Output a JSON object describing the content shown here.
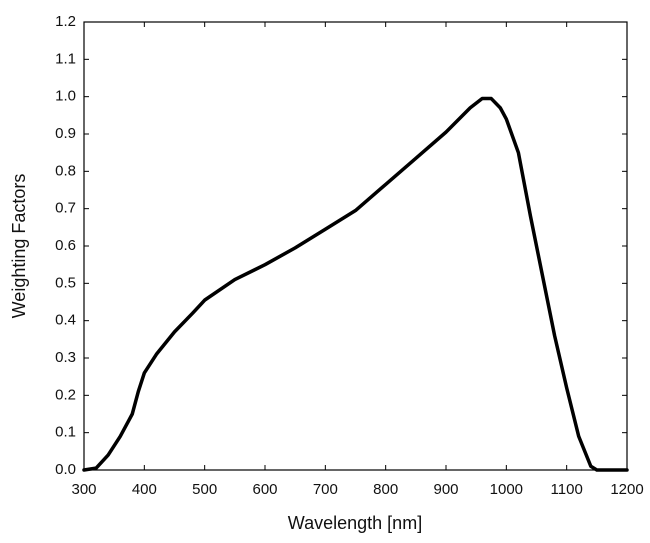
{
  "chart_data": {
    "type": "line",
    "xlabel": "Wavelength [nm]",
    "ylabel": "Weighting Factors",
    "x": [
      300,
      320,
      340,
      360,
      380,
      390,
      400,
      420,
      450,
      480,
      500,
      550,
      600,
      650,
      700,
      750,
      800,
      850,
      900,
      940,
      960,
      975,
      990,
      1000,
      1020,
      1040,
      1060,
      1080,
      1100,
      1120,
      1140,
      1150,
      1200
    ],
    "series": [
      {
        "name": "Weighting Factors",
        "color": "#000000",
        "values": [
          0.0,
          0.005,
          0.04,
          0.09,
          0.15,
          0.21,
          0.26,
          0.31,
          0.37,
          0.42,
          0.455,
          0.51,
          0.55,
          0.595,
          0.645,
          0.695,
          0.765,
          0.835,
          0.905,
          0.97,
          0.995,
          0.995,
          0.97,
          0.94,
          0.85,
          0.68,
          0.52,
          0.36,
          0.22,
          0.09,
          0.01,
          0.0,
          0.0
        ]
      }
    ],
    "xlim": [
      300,
      1200
    ],
    "ylim": [
      0,
      1.2
    ],
    "xticks": [
      300,
      400,
      500,
      600,
      700,
      800,
      900,
      1000,
      1100,
      1200
    ],
    "yticks": [
      {
        "value": 0,
        "label": "0.0"
      },
      0.1,
      0.2,
      0.3,
      0.4,
      0.5,
      0.6,
      0.7,
      0.8,
      0.9,
      {
        "value": 1,
        "label": "1.0"
      },
      1.1,
      1.2
    ],
    "grid": false
  }
}
